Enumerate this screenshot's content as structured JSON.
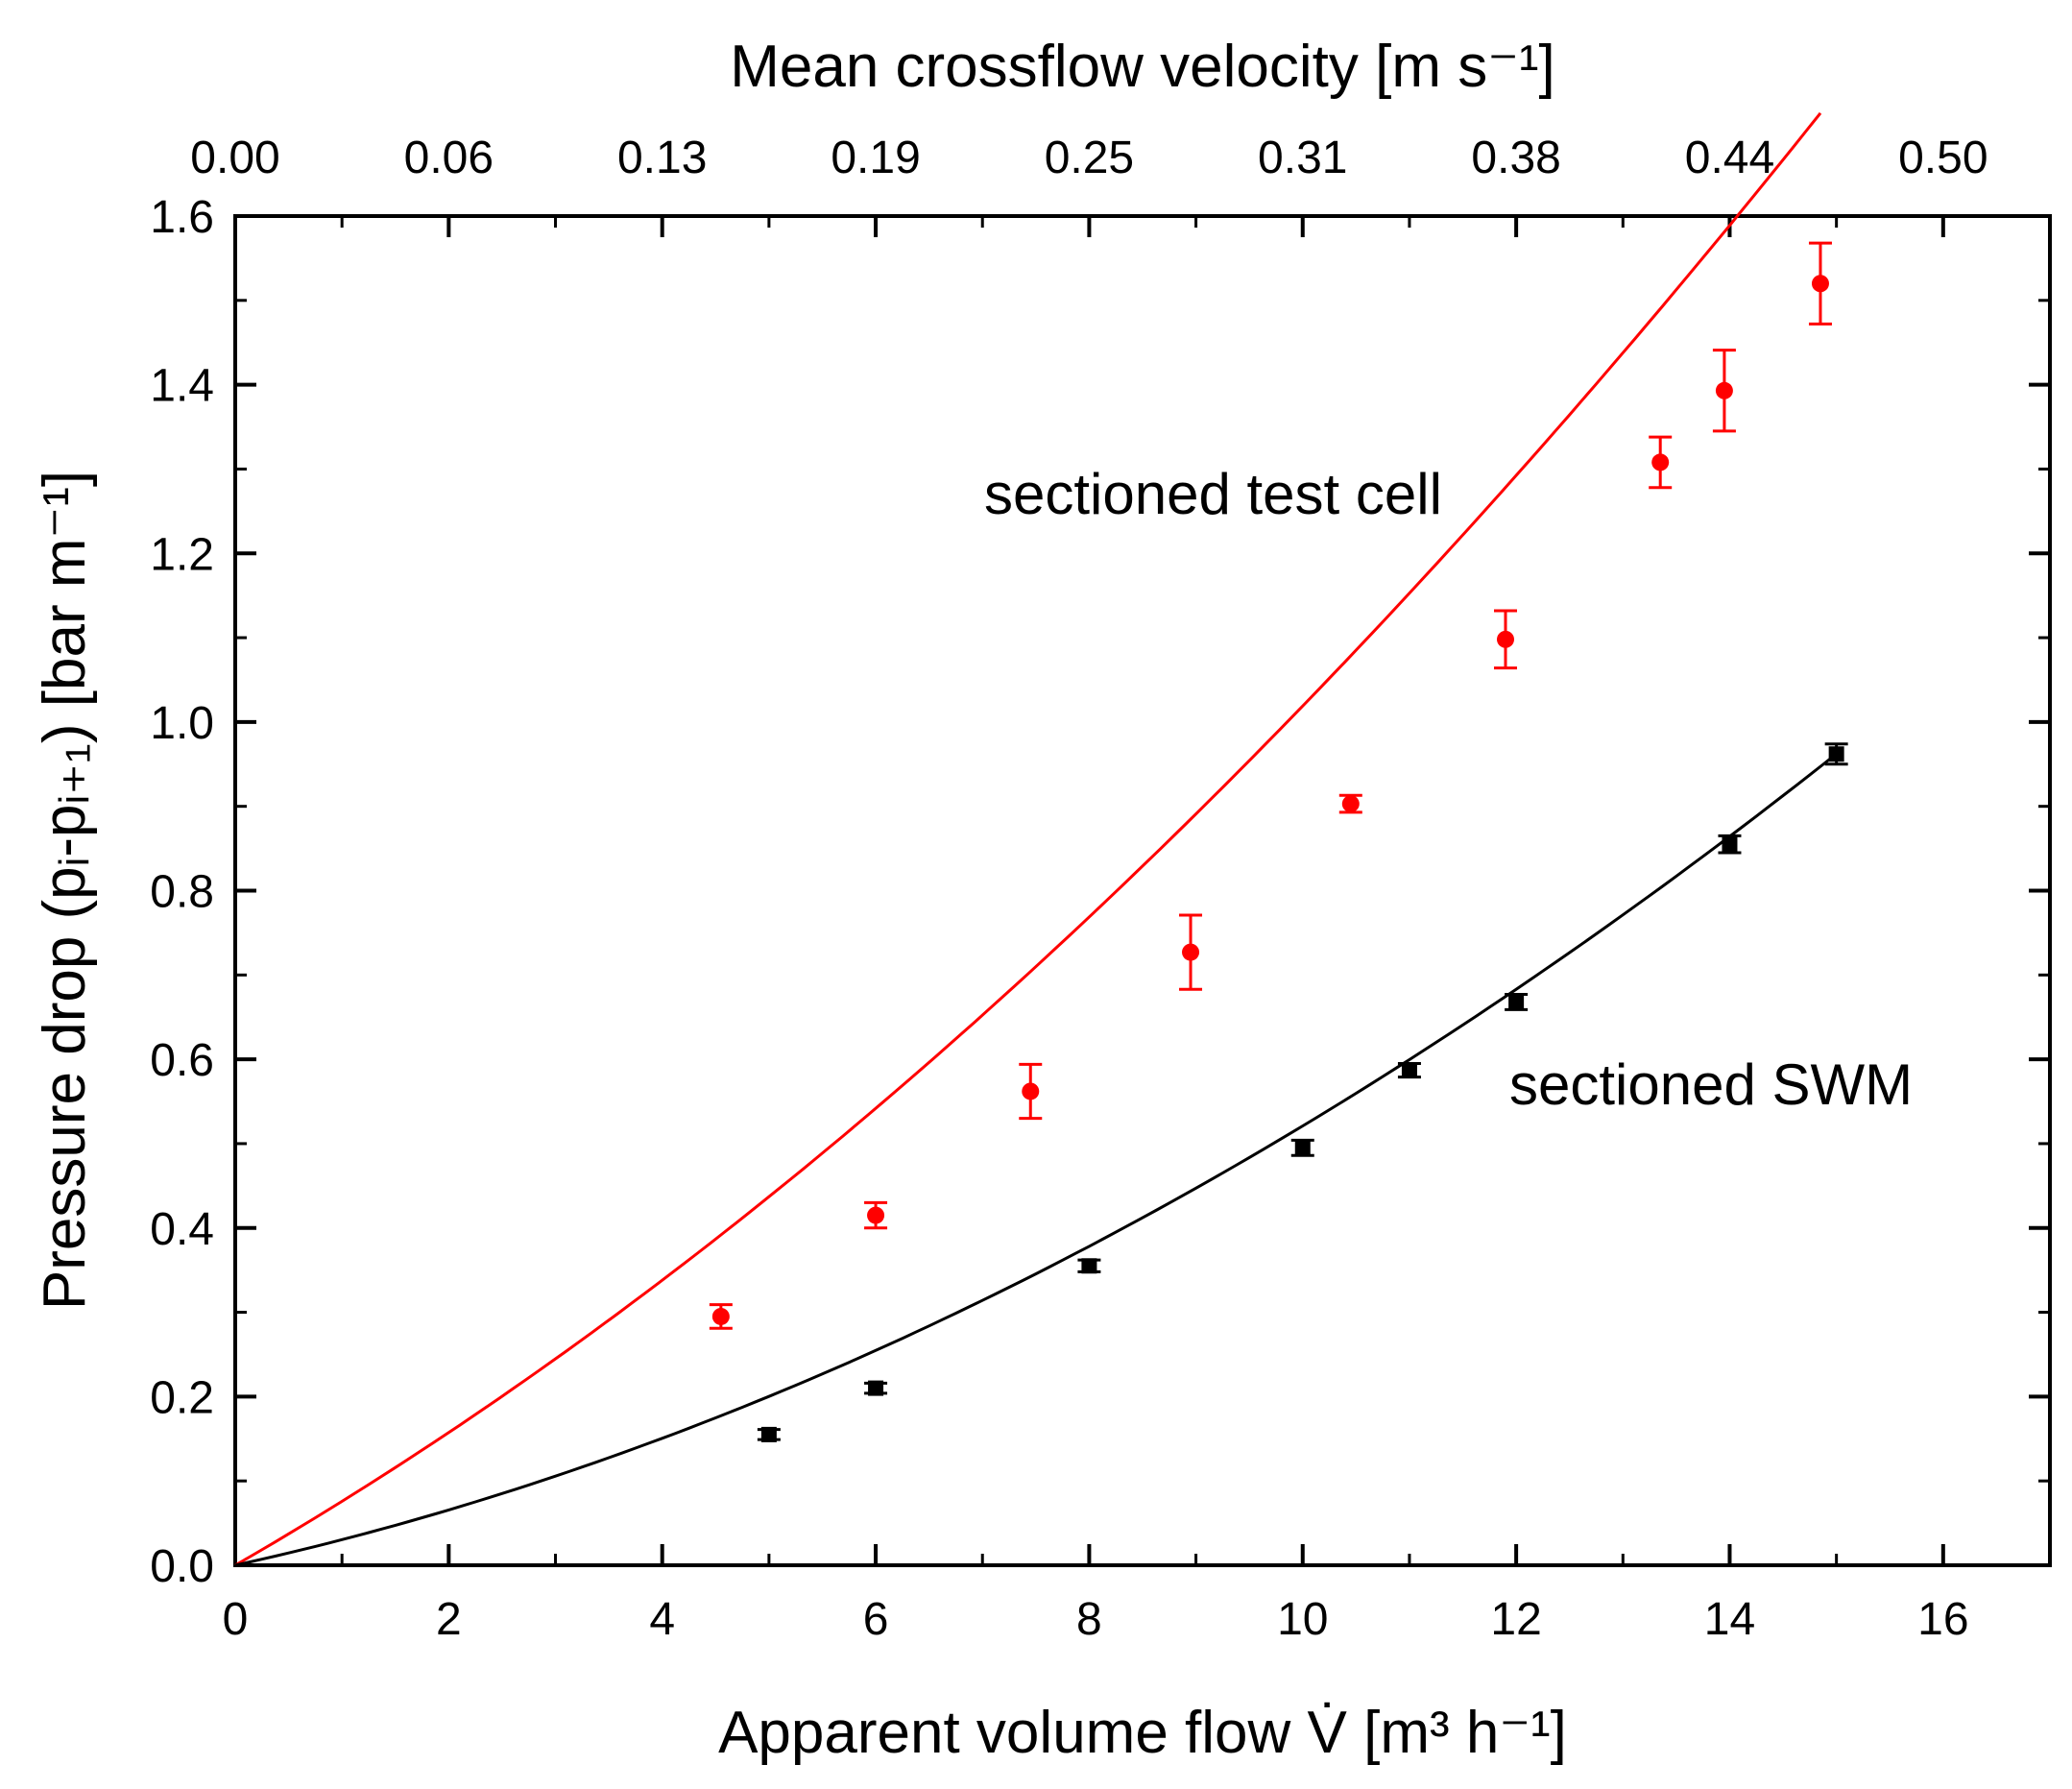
{
  "chart_data": {
    "type": "scatter",
    "title": "",
    "xlabel": "Apparent volume flow V̇ [m³ h⁻¹]",
    "ylabel": "Pressure drop (pᵢ-pᵢ₊₁) [bar m⁻¹]",
    "top_xlabel": "Mean crossflow velocity [m s⁻¹]",
    "xlim": [
      0,
      17
    ],
    "ylim": [
      0,
      1.6
    ],
    "x_ticks": [
      "0",
      "2",
      "4",
      "6",
      "8",
      "10",
      "12",
      "14",
      "16"
    ],
    "y_ticks": [
      "0.0",
      "0.2",
      "0.4",
      "0.6",
      "0.8",
      "1.0",
      "1.2",
      "1.4",
      "1.6"
    ],
    "top_ticks": [
      "0.00",
      "0.06",
      "0.13",
      "0.19",
      "0.25",
      "0.31",
      "0.38",
      "0.44",
      "0.50"
    ],
    "grid": false,
    "series": [
      {
        "name": "sectioned test cell",
        "color": "#ff0000",
        "marker": "circle",
        "x": [
          4.55,
          6.0,
          7.45,
          8.95,
          10.45,
          11.9,
          13.35,
          13.95,
          14.85
        ],
        "y": [
          0.295,
          0.415,
          0.562,
          0.727,
          0.903,
          1.098,
          1.308,
          1.393,
          1.52
        ],
        "err": [
          0.014,
          0.015,
          0.032,
          0.044,
          0.01,
          0.034,
          0.03,
          0.048,
          0.048
        ],
        "fit": {
          "a": 0.0729,
          "b": 0.0029
        }
      },
      {
        "name": "sectioned SWM",
        "color": "#000000",
        "marker": "square",
        "x": [
          5.0,
          6.0,
          8.0,
          10.0,
          11.0,
          12.0,
          14.0,
          15.0
        ],
        "y": [
          0.155,
          0.21,
          0.355,
          0.495,
          0.587,
          0.668,
          0.855,
          0.962
        ],
        "err": [
          0.006,
          0.006,
          0.007,
          0.009,
          0.008,
          0.009,
          0.01,
          0.012
        ],
        "fit": {
          "a": 0.028,
          "b": 0.00241
        }
      }
    ],
    "annotations": [
      "sectioned test cell",
      "sectioned SWM"
    ]
  }
}
